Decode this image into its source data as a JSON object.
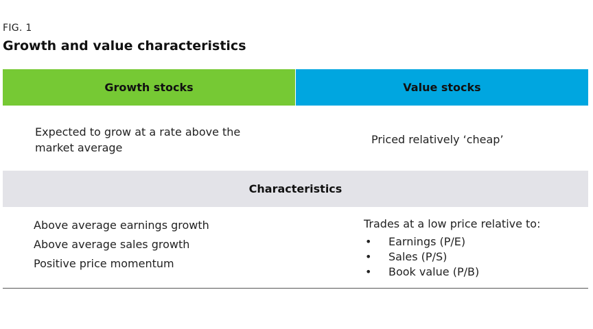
{
  "figure": {
    "label": "FIG. 1",
    "title": "Growth and value characteristics"
  },
  "columns": {
    "growth": {
      "header": "Growth stocks",
      "description": "Expected to grow at a rate above the market average",
      "characteristics": [
        "Above average earnings growth",
        "Above average sales growth",
        "Positive price momentum"
      ]
    },
    "value": {
      "header": "Value stocks",
      "description": "Priced relatively ‘cheap’",
      "characteristics_intro": "Trades at a low price relative to:",
      "bullet_symbol": "•",
      "characteristics": [
        "Earnings (P/E)",
        "Sales (P/S)",
        "Book value (P/B)"
      ]
    }
  },
  "characteristics_band": {
    "label": "Characteristics"
  },
  "colors": {
    "growth_header": "#76c934",
    "value_header": "#00a6e0",
    "band": "#e3e3e8"
  }
}
